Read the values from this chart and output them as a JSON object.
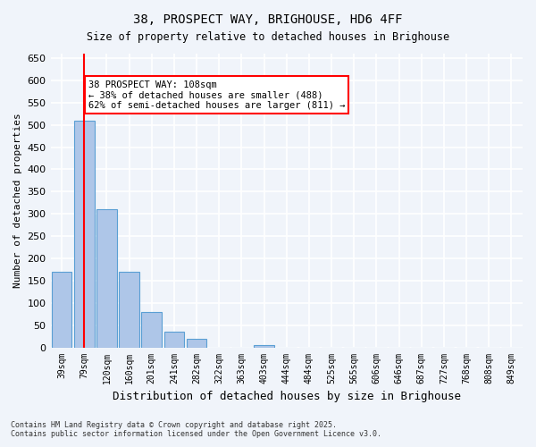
{
  "title": "38, PROSPECT WAY, BRIGHOUSE, HD6 4FF",
  "subtitle": "Size of property relative to detached houses in Brighouse",
  "xlabel": "Distribution of detached houses by size in Brighouse",
  "ylabel": "Number of detached properties",
  "categories": [
    "39sqm",
    "79sqm",
    "120sqm",
    "160sqm",
    "201sqm",
    "241sqm",
    "282sqm",
    "322sqm",
    "363sqm",
    "403sqm",
    "444sqm",
    "484sqm",
    "525sqm",
    "565sqm",
    "606sqm",
    "646sqm",
    "687sqm",
    "727sqm",
    "768sqm",
    "808sqm",
    "849sqm"
  ],
  "values": [
    170,
    510,
    310,
    170,
    80,
    35,
    20,
    0,
    0,
    5,
    0,
    0,
    0,
    0,
    0,
    0,
    0,
    0,
    0,
    0,
    0
  ],
  "bar_color": "#aec6e8",
  "bar_edge_color": "#5a9fd4",
  "red_line_x": 1.0,
  "property_size": "108sqm",
  "annotation_text": "38 PROSPECT WAY: 108sqm\n← 38% of detached houses are smaller (488)\n62% of semi-detached houses are larger (811) →",
  "annotation_box_color": "white",
  "annotation_box_edge_color": "red",
  "ylim": [
    0,
    660
  ],
  "yticks": [
    0,
    50,
    100,
    150,
    200,
    250,
    300,
    350,
    400,
    450,
    500,
    550,
    600,
    650
  ],
  "background_color": "#f0f4fa",
  "grid_color": "white",
  "footer_line1": "Contains HM Land Registry data © Crown copyright and database right 2025.",
  "footer_line2": "Contains public sector information licensed under the Open Government Licence v3.0."
}
